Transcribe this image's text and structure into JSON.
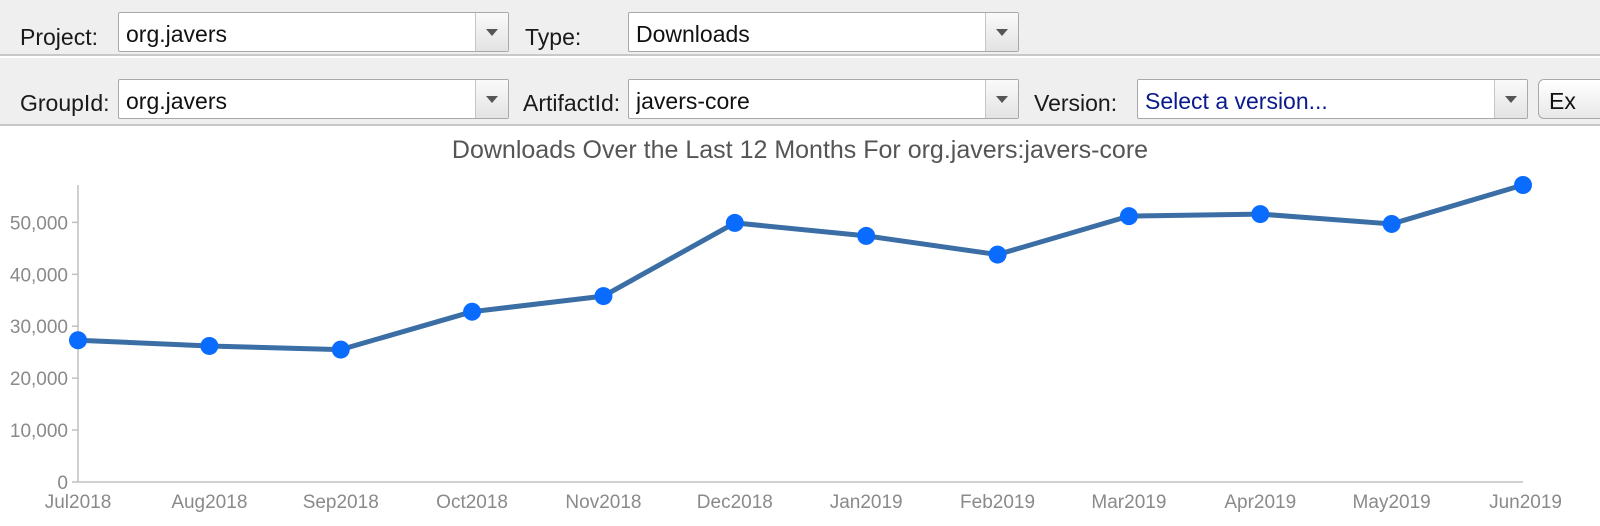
{
  "toolbar": {
    "project": {
      "label": "Project:",
      "value": "org.javers"
    },
    "type": {
      "label": "Type:",
      "value": "Downloads"
    },
    "groupId": {
      "label": "GroupId:",
      "value": "org.javers"
    },
    "artifactId": {
      "label": "ArtifactId:",
      "value": "javers-core"
    },
    "version": {
      "label": "Version:",
      "placeholder": "Select a version..."
    },
    "export_button_label": "Ex"
  },
  "colors": {
    "line": "#3a6ea5",
    "marker": "#0a6cff"
  },
  "chart_data": {
    "type": "line",
    "title": "Downloads Over the Last 12 Months For org.javers:javers-core",
    "xlabel": "",
    "ylabel": "",
    "categories": [
      "Jul2018",
      "Aug2018",
      "Sep2018",
      "Oct2018",
      "Nov2018",
      "Dec2018",
      "Jan2019",
      "Feb2019",
      "Mar2019",
      "Apr2019",
      "May2019",
      "Jun2019"
    ],
    "series": [
      {
        "values": [
          27300,
          26200,
          25500,
          32800,
          35800,
          49900,
          47400,
          43800,
          51200,
          51600,
          49700,
          57200
        ]
      }
    ],
    "ylim": [
      0,
      57200
    ],
    "yticks": [
      0,
      10000,
      20000,
      30000,
      40000,
      50000
    ],
    "ytick_labels": [
      "0",
      "10,000",
      "20,000",
      "30,000",
      "40,000",
      "50,000"
    ],
    "grid": false,
    "legend": false
  }
}
